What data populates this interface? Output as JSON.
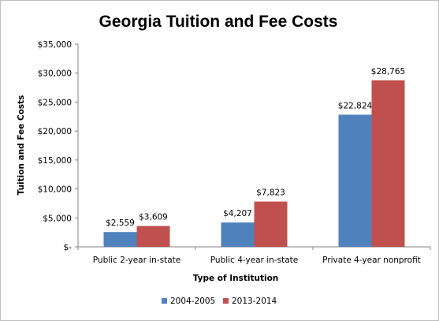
{
  "chart_data": {
    "type": "bar",
    "title": "Georgia Tuition and Fee Costs",
    "xlabel": "Type of Institution",
    "ylabel": "Tuition and Fee Costs",
    "categories": [
      "Public 2-year in-state",
      "Public 4-year in-state",
      "Private 4-year nonprofit"
    ],
    "series": [
      {
        "name": "2004-2005",
        "values": [
          2559,
          4207,
          22824
        ],
        "labels": [
          "$2,559",
          "$4,207",
          "$22,824"
        ],
        "color": "#4f81bd"
      },
      {
        "name": "2013-2014",
        "values": [
          3609,
          7823,
          28765
        ],
        "labels": [
          "$3,609",
          "$7,823",
          "$28,765"
        ],
        "color": "#c0504d"
      }
    ],
    "ylim": [
      0,
      35000
    ],
    "yticks": [
      0,
      5000,
      10000,
      15000,
      20000,
      25000,
      30000,
      35000
    ],
    "ytick_labels": [
      "$-",
      "$5,000",
      "$10,000",
      "$15,000",
      "$20,000",
      "$25,000",
      "$30,000",
      "$35,000"
    ],
    "grid": false,
    "legend_position": "bottom"
  }
}
